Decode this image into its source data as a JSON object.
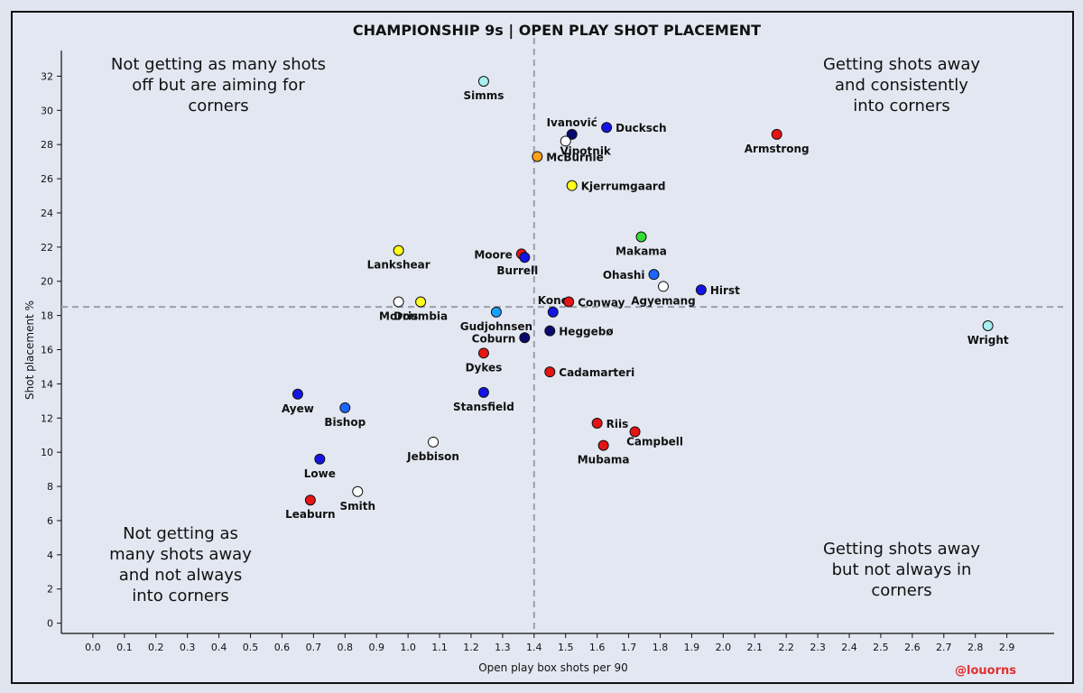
{
  "chart_data": {
    "type": "scatter",
    "title": "CHAMPIONSHIP 9s | OPEN PLAY SHOT PLACEMENT",
    "xlabel": "Open play box shots per 90",
    "ylabel": "Shot placement %",
    "xlim": [
      -0.1,
      3.05
    ],
    "ylim": [
      -0.6,
      33.5
    ],
    "xticks": [
      0.0,
      0.1,
      0.2,
      0.3,
      0.4,
      0.5,
      0.6,
      0.7,
      0.8,
      0.9,
      1.0,
      1.1,
      1.2,
      1.3,
      1.4,
      1.5,
      1.6,
      1.7,
      1.8,
      1.9,
      2.0,
      2.1,
      2.2,
      2.3,
      2.4,
      2.5,
      2.6,
      2.7,
      2.8,
      2.9
    ],
    "yticks": [
      0,
      2,
      4,
      6,
      8,
      10,
      12,
      14,
      16,
      18,
      20,
      22,
      24,
      26,
      28,
      30,
      32
    ],
    "vline": 1.4,
    "hline": 18.5,
    "grid": false,
    "quadrant_labels": {
      "top_left": [
        "Not getting as many shots",
        "off but are aiming for",
        "corners"
      ],
      "top_right": [
        "Getting shots away",
        "and consistently",
        "into corners"
      ],
      "bottom_left": [
        "Not getting as",
        "many shots away",
        "and not always",
        "into corners"
      ],
      "bottom_right": [
        "Getting shots away",
        "but not always in",
        "corners"
      ]
    },
    "points": [
      {
        "name": "Simms",
        "x": 1.24,
        "y": 31.7,
        "color": "#a8f0f0",
        "label_pos": "below"
      },
      {
        "name": "Ivanović",
        "x": 1.52,
        "y": 28.6,
        "color": "#0a0a6e",
        "label_pos": "above"
      },
      {
        "name": "Ducksch",
        "x": 1.63,
        "y": 29.0,
        "color": "#1414e6",
        "label_pos": "right"
      },
      {
        "name": "Vipotnik",
        "x": 1.5,
        "y": 28.2,
        "color": "#ffffff",
        "label_pos": "below-right"
      },
      {
        "name": "McBurnie",
        "x": 1.41,
        "y": 27.3,
        "color": "#ff9f1a",
        "label_pos": "right"
      },
      {
        "name": "Kjerrumgaard",
        "x": 1.52,
        "y": 25.6,
        "color": "#ffff1a",
        "label_pos": "right"
      },
      {
        "name": "Armstrong",
        "x": 2.17,
        "y": 28.6,
        "color": "#e61414",
        "label_pos": "below"
      },
      {
        "name": "Makama",
        "x": 1.74,
        "y": 22.6,
        "color": "#33dd33",
        "label_pos": "below"
      },
      {
        "name": "Lankshear",
        "x": 0.97,
        "y": 21.8,
        "color": "#ffff1a",
        "label_pos": "below"
      },
      {
        "name": "Moore",
        "x": 1.36,
        "y": 21.6,
        "color": "#e61414",
        "label_pos": "left"
      },
      {
        "name": "Burrell",
        "x": 1.37,
        "y": 21.4,
        "color": "#1414e6",
        "label_pos": "below-left"
      },
      {
        "name": "Ohashi",
        "x": 1.78,
        "y": 20.4,
        "color": "#1a66ff",
        "label_pos": "left"
      },
      {
        "name": "Agyemang",
        "x": 1.81,
        "y": 19.7,
        "color": "#ffffff",
        "label_pos": "below"
      },
      {
        "name": "Hirst",
        "x": 1.93,
        "y": 19.5,
        "color": "#1414e6",
        "label_pos": "right"
      },
      {
        "name": "Morris",
        "x": 0.97,
        "y": 18.8,
        "color": "#ffffff",
        "label_pos": "below"
      },
      {
        "name": "Doumbia",
        "x": 1.04,
        "y": 18.8,
        "color": "#ffff1a",
        "label_pos": "below"
      },
      {
        "name": "Kone",
        "x": 1.46,
        "y": 18.2,
        "color": "#1414e6",
        "label_pos": "above"
      },
      {
        "name": "Conway",
        "x": 1.51,
        "y": 18.8,
        "color": "#e61414",
        "label_pos": "right"
      },
      {
        "name": "Gudjohnsen",
        "x": 1.28,
        "y": 18.2,
        "color": "#1a9fff",
        "label_pos": "below"
      },
      {
        "name": "Wright",
        "x": 2.84,
        "y": 17.4,
        "color": "#a8f0f0",
        "label_pos": "below"
      },
      {
        "name": "Heggebø",
        "x": 1.45,
        "y": 17.1,
        "color": "#0a0a6e",
        "label_pos": "right"
      },
      {
        "name": "Coburn",
        "x": 1.37,
        "y": 16.7,
        "color": "#0a0a6e",
        "label_pos": "left"
      },
      {
        "name": "Dykes",
        "x": 1.24,
        "y": 15.8,
        "color": "#e61414",
        "label_pos": "below"
      },
      {
        "name": "Cadamarteri",
        "x": 1.45,
        "y": 14.7,
        "color": "#e61414",
        "label_pos": "right"
      },
      {
        "name": "Stansfield",
        "x": 1.24,
        "y": 13.5,
        "color": "#1414e6",
        "label_pos": "below"
      },
      {
        "name": "Ayew",
        "x": 0.65,
        "y": 13.4,
        "color": "#1414e6",
        "label_pos": "below"
      },
      {
        "name": "Bishop",
        "x": 0.8,
        "y": 12.6,
        "color": "#1a66ff",
        "label_pos": "below"
      },
      {
        "name": "Riis",
        "x": 1.6,
        "y": 11.7,
        "color": "#e61414",
        "label_pos": "right"
      },
      {
        "name": "Campbell",
        "x": 1.72,
        "y": 11.2,
        "color": "#e61414",
        "label_pos": "below-right"
      },
      {
        "name": "Mubama",
        "x": 1.62,
        "y": 10.4,
        "color": "#e61414",
        "label_pos": "below"
      },
      {
        "name": "Jebbison",
        "x": 1.08,
        "y": 10.6,
        "color": "#ffffff",
        "label_pos": "below"
      },
      {
        "name": "Lowe",
        "x": 0.72,
        "y": 9.6,
        "color": "#1414e6",
        "label_pos": "below"
      },
      {
        "name": "Smith",
        "x": 0.84,
        "y": 7.7,
        "color": "#ffffff",
        "label_pos": "below"
      },
      {
        "name": "Leaburn",
        "x": 0.69,
        "y": 7.2,
        "color": "#e61414",
        "label_pos": "below"
      }
    ]
  },
  "watermark": "@louorns",
  "colors": {
    "background": "#e3e7f1",
    "watermark": "#e03030",
    "refline": "#9aa0ad"
  }
}
